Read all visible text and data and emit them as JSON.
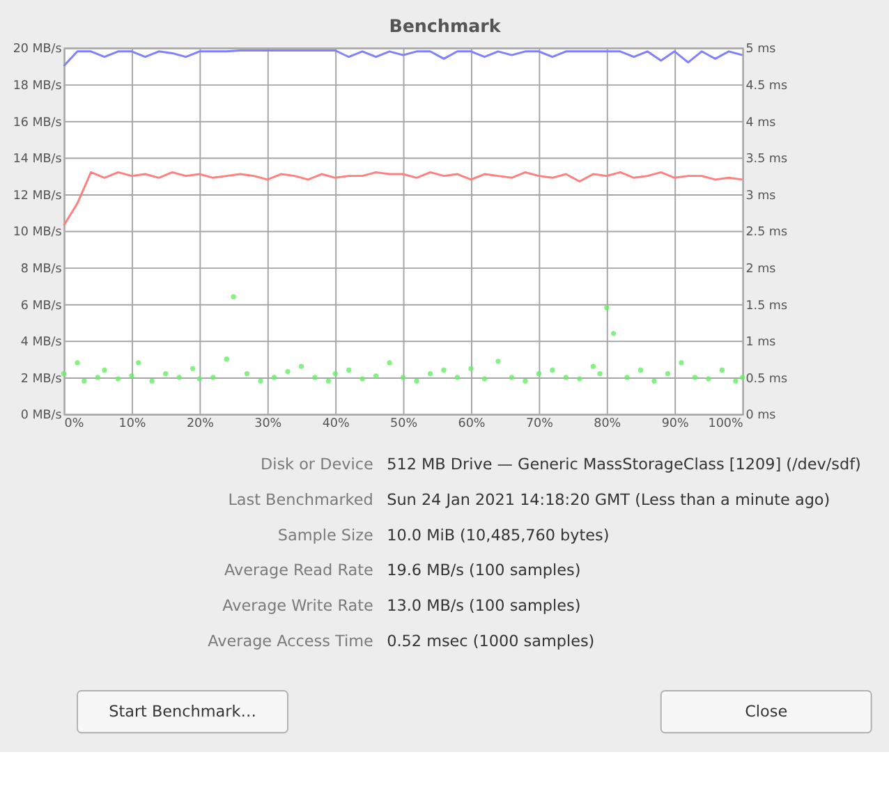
{
  "chart_data": {
    "type": "line",
    "title": "Benchmark",
    "x": [
      0,
      2,
      4,
      6,
      8,
      10,
      12,
      14,
      16,
      18,
      20,
      22,
      24,
      26,
      28,
      30,
      32,
      34,
      36,
      38,
      40,
      42,
      44,
      46,
      48,
      50,
      52,
      54,
      56,
      58,
      60,
      62,
      64,
      66,
      68,
      70,
      72,
      74,
      76,
      78,
      80,
      82,
      84,
      86,
      88,
      90,
      92,
      94,
      96,
      98,
      100
    ],
    "xlim": [
      0,
      100
    ],
    "xticks": [
      {
        "value": 0,
        "label": "0%"
      },
      {
        "value": 10,
        "label": "10%"
      },
      {
        "value": 20,
        "label": "20%"
      },
      {
        "value": 30,
        "label": "30%"
      },
      {
        "value": 40,
        "label": "40%"
      },
      {
        "value": 50,
        "label": "50%"
      },
      {
        "value": 60,
        "label": "60%"
      },
      {
        "value": 70,
        "label": "70%"
      },
      {
        "value": 80,
        "label": "80%"
      },
      {
        "value": 90,
        "label": "90%"
      },
      {
        "value": 100,
        "label": "100%"
      }
    ],
    "ylim": [
      0,
      20
    ],
    "yticks": [
      {
        "value": 0,
        "label": "0 MB/s"
      },
      {
        "value": 2,
        "label": "2 MB/s"
      },
      {
        "value": 4,
        "label": "4 MB/s"
      },
      {
        "value": 6,
        "label": "6 MB/s"
      },
      {
        "value": 8,
        "label": "8 MB/s"
      },
      {
        "value": 10,
        "label": "10 MB/s"
      },
      {
        "value": 12,
        "label": "12 MB/s"
      },
      {
        "value": 14,
        "label": "14 MB/s"
      },
      {
        "value": 16,
        "label": "16 MB/s"
      },
      {
        "value": 18,
        "label": "18 MB/s"
      },
      {
        "value": 20,
        "label": "20 MB/s"
      }
    ],
    "y2lim": [
      0,
      5
    ],
    "y2ticks": [
      {
        "value": 0,
        "label": "0 ms"
      },
      {
        "value": 0.5,
        "label": "0.5 ms"
      },
      {
        "value": 1,
        "label": "1 ms"
      },
      {
        "value": 1.5,
        "label": "1.5 ms"
      },
      {
        "value": 2,
        "label": "2 ms"
      },
      {
        "value": 2.5,
        "label": "2.5 ms"
      },
      {
        "value": 3,
        "label": "3 ms"
      },
      {
        "value": 3.5,
        "label": "3.5 ms"
      },
      {
        "value": 4,
        "label": "4 ms"
      },
      {
        "value": 4.5,
        "label": "4.5 ms"
      },
      {
        "value": 5,
        "label": "5 ms"
      }
    ],
    "grid": true,
    "series": [
      {
        "color": "#7f7fff",
        "values": [
          19.0,
          19.8,
          19.8,
          19.5,
          19.8,
          19.8,
          19.5,
          19.8,
          19.7,
          19.5,
          19.8,
          19.8,
          19.8,
          19.85,
          19.85,
          19.85,
          19.85,
          19.85,
          19.85,
          19.85,
          19.85,
          19.5,
          19.8,
          19.5,
          19.8,
          19.6,
          19.8,
          19.8,
          19.4,
          19.8,
          19.8,
          19.5,
          19.8,
          19.6,
          19.8,
          19.8,
          19.5,
          19.8,
          19.8,
          19.8,
          19.8,
          19.8,
          19.5,
          19.8,
          19.3,
          19.8,
          19.2,
          19.8,
          19.4,
          19.8,
          19.6
        ]
      },
      {
        "color": "#ff7f7f",
        "values": [
          10.3,
          11.5,
          13.2,
          12.9,
          13.2,
          13.0,
          13.1,
          12.9,
          13.2,
          13.0,
          13.1,
          12.9,
          13.0,
          13.1,
          13.0,
          12.8,
          13.1,
          13.0,
          12.8,
          13.1,
          12.9,
          13.0,
          13.0,
          13.2,
          13.1,
          13.1,
          12.9,
          13.2,
          13.0,
          13.1,
          12.8,
          13.1,
          13.0,
          12.9,
          13.2,
          13.0,
          12.9,
          13.1,
          12.7,
          13.1,
          13.0,
          13.2,
          12.9,
          13.0,
          13.2,
          12.9,
          13.0,
          13.0,
          12.8,
          12.9,
          12.8
        ]
      },
      {
        "type": "scatter",
        "axis": "y2",
        "color": "#66ee66",
        "x": [
          0,
          2,
          3,
          5,
          6,
          8,
          10,
          11,
          13,
          15,
          17,
          19,
          20,
          22,
          24,
          25,
          27,
          29,
          31,
          33,
          35,
          37,
          39,
          40,
          42,
          44,
          46,
          48,
          50,
          52,
          54,
          56,
          58,
          60,
          62,
          64,
          66,
          68,
          70,
          72,
          74,
          76,
          78,
          79,
          80,
          81,
          83,
          85,
          87,
          89,
          91,
          93,
          95,
          97,
          99,
          100
        ],
        "values": [
          0.55,
          0.7,
          0.45,
          0.5,
          0.6,
          0.48,
          0.52,
          0.7,
          0.45,
          0.55,
          0.5,
          0.62,
          0.48,
          0.5,
          0.75,
          1.6,
          0.55,
          0.45,
          0.5,
          0.58,
          0.65,
          0.5,
          0.45,
          0.55,
          0.6,
          0.48,
          0.52,
          0.7,
          0.5,
          0.45,
          0.55,
          0.6,
          0.5,
          0.62,
          0.48,
          0.72,
          0.5,
          0.45,
          0.55,
          0.6,
          0.5,
          0.48,
          0.65,
          0.55,
          1.45,
          1.1,
          0.5,
          0.6,
          0.45,
          0.55,
          0.7,
          0.5,
          0.48,
          0.6,
          0.45,
          0.5
        ]
      }
    ],
    "annotations": [
      "Disk or Device",
      "512 MB Drive — Generic MassStorageClass [1209] (/dev/sdf)",
      "Last Benchmarked",
      "Sun 24 Jan 2021 14:18:20 GMT (Less than a minute ago)",
      "Sample Size",
      "10.0 MiB (10,485,760 bytes)",
      "Average Read Rate",
      "19.6 MB/s (100 samples)",
      "Average Write Rate",
      "13.0 MB/s (100 samples)",
      "Average Access Time",
      "0.52 msec (1000 samples)",
      "Start Benchmark…",
      "Close"
    ]
  }
}
